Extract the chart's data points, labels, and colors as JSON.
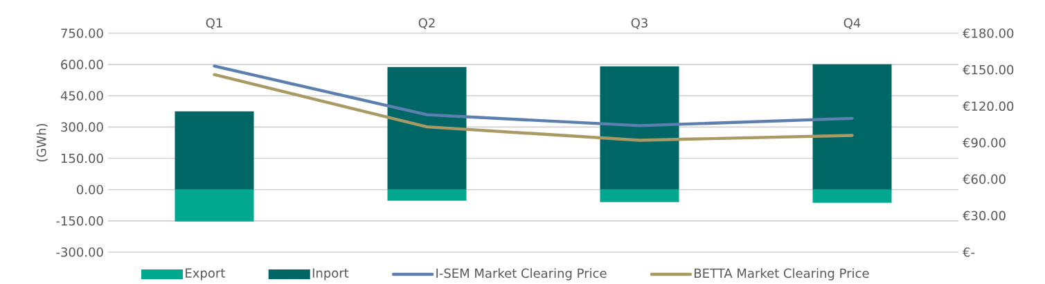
{
  "chart_data": {
    "type": "bar",
    "categories": [
      "Q1",
      "Q2",
      "Q3",
      "Q4"
    ],
    "ylabel": "(GWh)",
    "series": [
      {
        "name": "Export",
        "color": "#00a88f",
        "values": [
          -153,
          -53,
          -60,
          -63
        ]
      },
      {
        "name": "Inport",
        "color": "#006766",
        "values": [
          375,
          588,
          591,
          601
        ]
      },
      {
        "name": "I-SEM Market Clearing Price",
        "type": "line",
        "axis": "y2",
        "color": "#5b7fae",
        "values": [
          153,
          113,
          104,
          110
        ]
      },
      {
        "name": "BETTA Market Clearing Price",
        "type": "line",
        "axis": "y2",
        "color": "#a99a64",
        "values": [
          146,
          103,
          92,
          96
        ]
      }
    ],
    "ylim": [
      -300,
      750
    ],
    "yticks": [
      {
        "value": -300,
        "label": "-300.00"
      },
      {
        "value": -150,
        "label": "-150.00"
      },
      {
        "value": 0,
        "label": "0.00"
      },
      {
        "value": 150,
        "label": "150.00"
      },
      {
        "value": 300,
        "label": "300.00"
      },
      {
        "value": 450,
        "label": "450.00"
      },
      {
        "value": 600,
        "label": "600.00"
      },
      {
        "value": 750,
        "label": "750.00"
      }
    ],
    "y2lim": [
      0,
      180
    ],
    "y2ticks": [
      {
        "value": 0,
        "label": "€-"
      },
      {
        "value": 30,
        "label": "€30.00"
      },
      {
        "value": 60,
        "label": "€60.00"
      },
      {
        "value": 90,
        "label": "€90.00"
      },
      {
        "value": 120,
        "label": "€120.00"
      },
      {
        "value": 150,
        "label": "€150.00"
      },
      {
        "value": 180,
        "label": "€180.00"
      }
    ],
    "stacked": true,
    "grid": "y",
    "legend": "bottom",
    "marker": "none",
    "line_style": "solid"
  }
}
